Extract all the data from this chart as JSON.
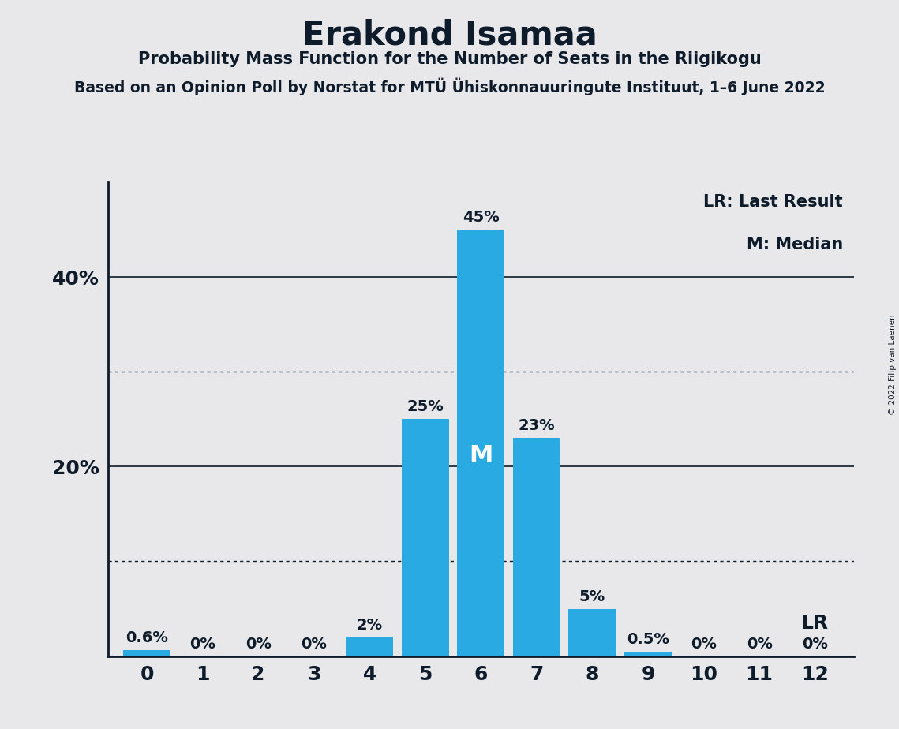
{
  "title": "Erakond Isamaa",
  "subtitle": "Probability Mass Function for the Number of Seats in the Riigikogu",
  "sub_subtitle": "Based on an Opinion Poll by Norstat for MTÜ Ühiskonnauuringute Instituut, 1–6 June 2022",
  "copyright": "© 2022 Filip van Laenen",
  "categories": [
    0,
    1,
    2,
    3,
    4,
    5,
    6,
    7,
    8,
    9,
    10,
    11,
    12
  ],
  "values": [
    0.6,
    0,
    0,
    0,
    2,
    25,
    45,
    23,
    5,
    0.5,
    0,
    0,
    0
  ],
  "bar_labels": [
    "0.6%",
    "0%",
    "0%",
    "0%",
    "2%",
    "25%",
    "45%",
    "23%",
    "5%",
    "0.5%",
    "0%",
    "0%",
    "0%"
  ],
  "bar_color": "#29aae2",
  "background_color": "#e8e8eb",
  "text_color": "#0d1b2a",
  "median_index": 6,
  "median_label": "M",
  "lr_index": 12,
  "lr_label": "LR",
  "ylim": [
    0,
    50
  ],
  "yticks_labeled": [
    20,
    40
  ],
  "solid_gridlines": [
    20,
    40
  ],
  "dotted_gridlines": [
    10,
    30
  ],
  "legend_lr": "LR: Last Result",
  "legend_m": "M: Median"
}
